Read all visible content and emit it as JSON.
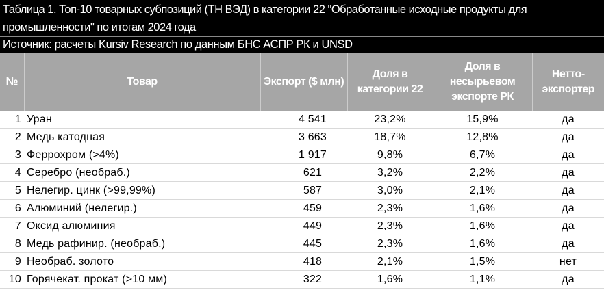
{
  "header": {
    "title": "Таблица 1. Топ-10 товарных субпозиций (ТН ВЭД) в категории 22 \"Обработанные исходные продукты для промышленности\" по итогам 2024 года",
    "source": "Источник: расчеты Kursiv Research по данным БНС АСПР РК и UNSD"
  },
  "table": {
    "columns": [
      "№",
      "Товар",
      "Экспорт ($ млн)",
      "Доля в категории 22",
      "Доля в несырьевом экспорте РК",
      "Нетто-экспортер"
    ],
    "rows": [
      [
        "1",
        "Уран",
        "4 541",
        "23,2%",
        "15,9%",
        "да"
      ],
      [
        "2",
        "Медь катодная",
        "3 663",
        "18,7%",
        "12,8%",
        "да"
      ],
      [
        "3",
        "Феррохром (>4%)",
        "1 917",
        "9,8%",
        "6,7%",
        "да"
      ],
      [
        "4",
        "Серебро (необраб.)",
        "621",
        "3,2%",
        "2,2%",
        "да"
      ],
      [
        "5",
        "Нелегир. цинк (>99,99%)",
        "587",
        "3,0%",
        "2,1%",
        "да"
      ],
      [
        "6",
        "Алюминий (нелегир.)",
        "459",
        "2,3%",
        "1,6%",
        "да"
      ],
      [
        "7",
        "Оксид алюминия",
        "449",
        "2,3%",
        "1,6%",
        "да"
      ],
      [
        "8",
        "Медь рафинир. (необраб.)",
        "445",
        "2,3%",
        "1,6%",
        "да"
      ],
      [
        "9",
        "Необраб. золото",
        "418",
        "2,1%",
        "1,5%",
        "нет"
      ],
      [
        "10",
        "Горячекат. прокат (>10 мм)",
        "322",
        "1,6%",
        "1,1%",
        "да"
      ]
    ]
  }
}
